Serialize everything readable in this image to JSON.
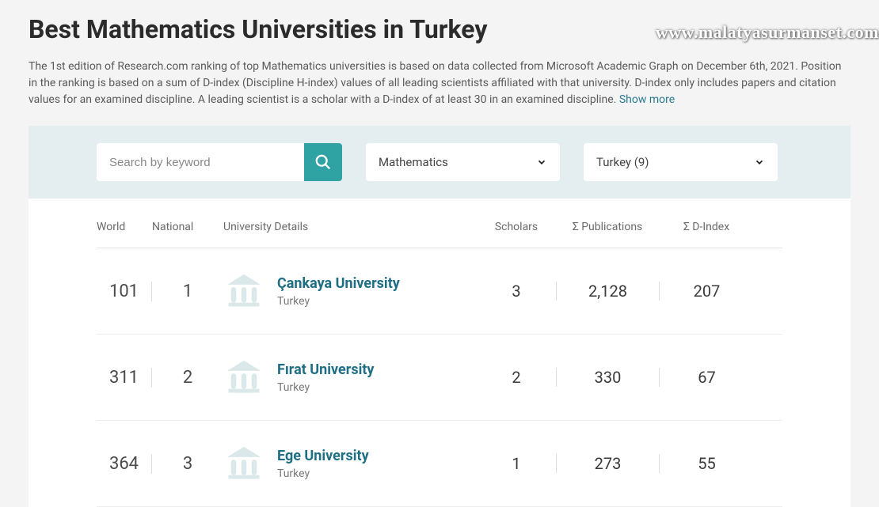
{
  "page": {
    "title": "Best Mathematics Universities in Turkey",
    "description": "The 1st edition of Research.com ranking of top Mathematics universities is based on data collected from Microsoft Academic Graph on December 6th, 2021. Position in the ranking is based on a sum of D-index (Discipline H-index) values of all leading scientists affiliated with that university. D-index only includes papers and citation values for an examined discipline. A leading scientist is a scholar with a D-index of at least 30 in an examined discipline. ",
    "show_more": "Show more"
  },
  "watermark": "www.malatyasurmanset.com",
  "filters": {
    "search_placeholder": "Search by keyword",
    "discipline": "Mathematics",
    "country": "Turkey (9)"
  },
  "columns": {
    "world": "World",
    "national": "National",
    "details": "University Details",
    "scholars": "Scholars",
    "publications": "Σ Publications",
    "dindex": "Σ D-Index"
  },
  "rows": [
    {
      "world": "101",
      "national": "1",
      "name": "Çankaya University",
      "country": "Turkey",
      "scholars": "3",
      "publications": "2,128",
      "dindex": "207"
    },
    {
      "world": "311",
      "national": "2",
      "name": "Fırat University",
      "country": "Turkey",
      "scholars": "2",
      "publications": "330",
      "dindex": "67"
    },
    {
      "world": "364",
      "national": "3",
      "name": "Ege University",
      "country": "Turkey",
      "scholars": "1",
      "publications": "273",
      "dindex": "55"
    }
  ],
  "colors": {
    "accent": "#2fa3a3",
    "link": "#1f6f84",
    "panel_bg": "#e4eef0",
    "page_bg": "#f4f4f4",
    "icon_fill": "#dbe8ea"
  }
}
